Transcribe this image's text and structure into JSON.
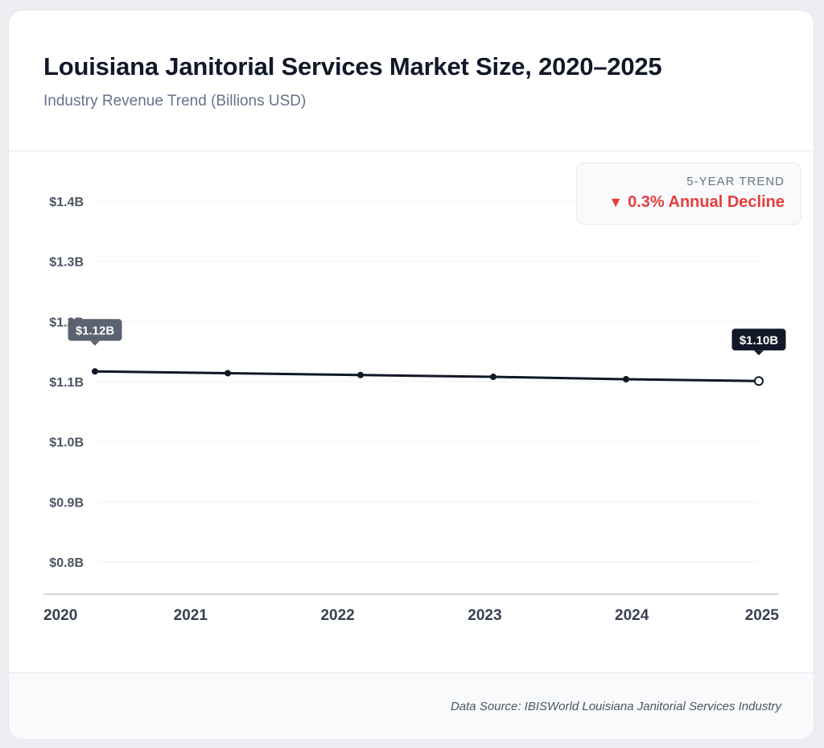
{
  "title": "Louisiana Janitorial Services Market Size, 2020–2025",
  "subtitle": "Industry Revenue Trend (Billions USD)",
  "trend": {
    "label": "5-YEAR TREND",
    "arrow": "▼",
    "value": "0.3% Annual Decline",
    "color": "#e53e3e"
  },
  "footer": {
    "source": "Data Source: IBISWorld Louisiana Janitorial Services Industry"
  },
  "chart_data": {
    "type": "line",
    "title": "Louisiana Janitorial Services Market Size, 2020–2025",
    "subtitle": "Industry Revenue Trend (Billions USD)",
    "x": [
      2020,
      2021,
      2022,
      2023,
      2024,
      2025
    ],
    "x_tick_labels": [
      "2020",
      "2021",
      "2022",
      "2023",
      "2024",
      "2025"
    ],
    "series": [
      {
        "values": [
          1.117,
          1.114,
          1.111,
          1.108,
          1.104,
          1.101
        ],
        "color": "#111827"
      }
    ],
    "ylim": [
      0.8,
      1.4
    ],
    "y_ticks": [
      1.4,
      1.3,
      1.2,
      1.1,
      1.0,
      0.9,
      0.8
    ],
    "y_tick_labels": [
      "$1.4B",
      "$1.3B",
      "$1.2B",
      "$1.1B",
      "$1.0B",
      "$0.9B",
      "$0.8B"
    ],
    "annotations": [
      {
        "index": 0,
        "text": "$1.12B",
        "bg": "#5b6270"
      },
      {
        "index": 5,
        "text": "$1.10B",
        "bg": "#111827"
      }
    ],
    "grid": true,
    "xlabel": "",
    "ylabel": ""
  }
}
